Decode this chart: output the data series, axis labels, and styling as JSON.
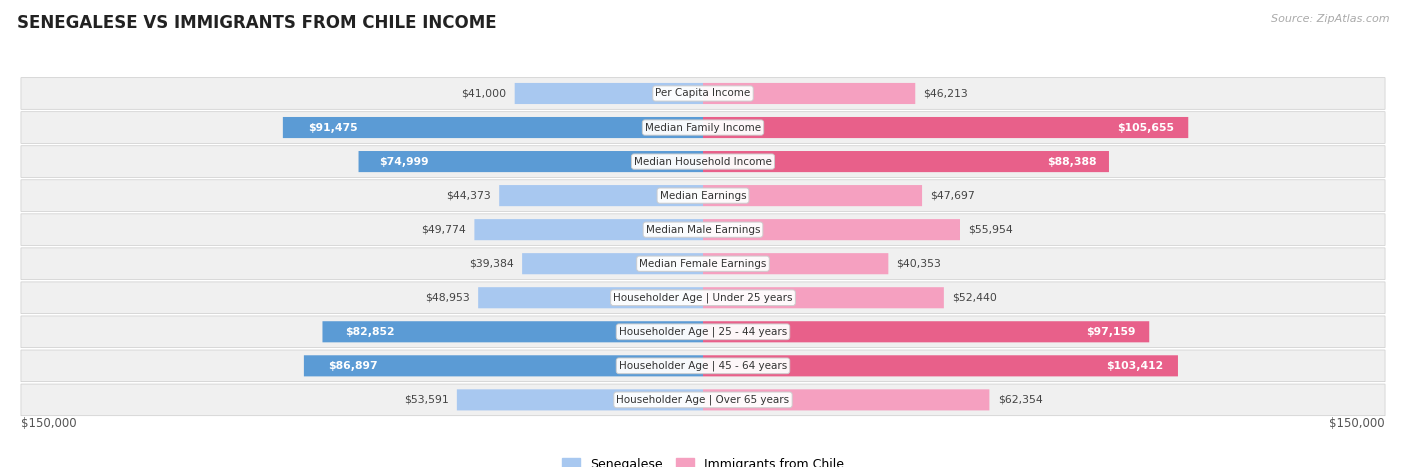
{
  "title": "SENEGALESE VS IMMIGRANTS FROM CHILE INCOME",
  "source": "Source: ZipAtlas.com",
  "max_val": 150000,
  "categories": [
    "Per Capita Income",
    "Median Family Income",
    "Median Household Income",
    "Median Earnings",
    "Median Male Earnings",
    "Median Female Earnings",
    "Householder Age | Under 25 years",
    "Householder Age | 25 - 44 years",
    "Householder Age | 45 - 64 years",
    "Householder Age | Over 65 years"
  ],
  "senegalese": [
    41000,
    91475,
    74999,
    44373,
    49774,
    39384,
    48953,
    82852,
    86897,
    53591
  ],
  "chile": [
    46213,
    105655,
    88388,
    47697,
    55954,
    40353,
    52440,
    97159,
    103412,
    62354
  ],
  "senegalese_labels": [
    "$41,000",
    "$91,475",
    "$74,999",
    "$44,373",
    "$49,774",
    "$39,384",
    "$48,953",
    "$82,852",
    "$86,897",
    "$53,591"
  ],
  "chile_labels": [
    "$46,213",
    "$105,655",
    "$88,388",
    "$47,697",
    "$55,954",
    "$40,353",
    "$52,440",
    "$97,159",
    "$103,412",
    "$62,354"
  ],
  "color_senegalese_light": "#a8c8f0",
  "color_senegalese_dark": "#5b9bd5",
  "color_chile_light": "#f5a0c0",
  "color_chile_dark": "#e8608a",
  "bg_row": "#f0f0f0",
  "large_value_threshold": 70000,
  "label_fontsize": 7.8,
  "cat_fontsize": 7.5
}
